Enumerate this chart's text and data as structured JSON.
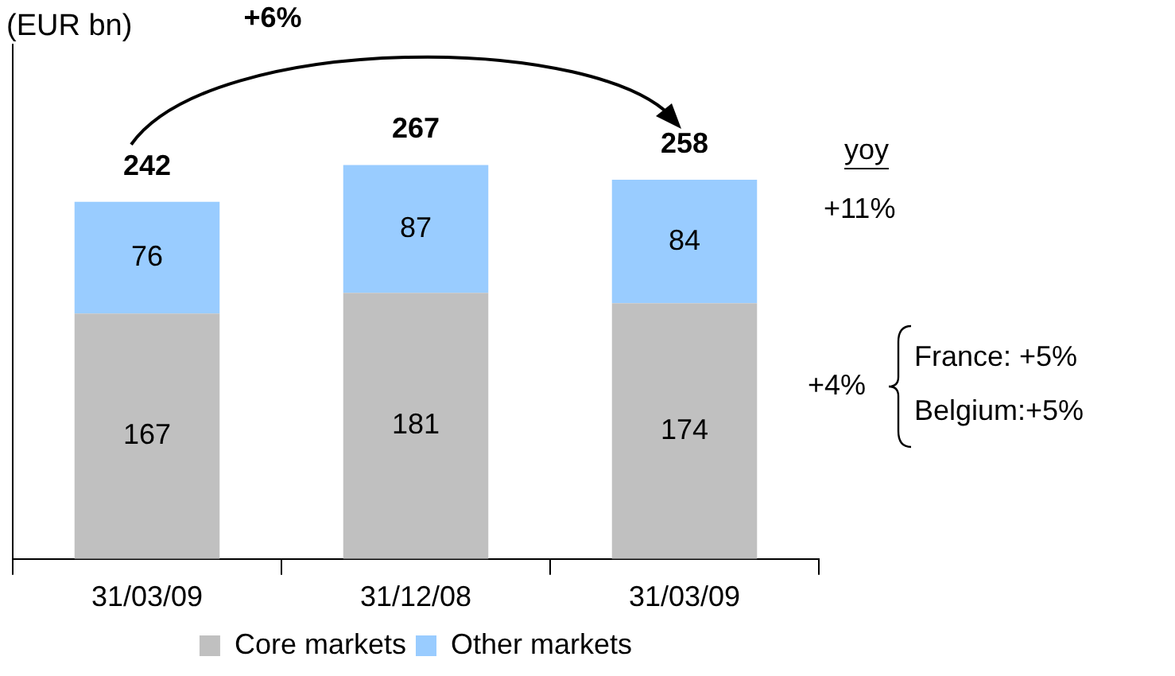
{
  "chart_data": {
    "type": "bar",
    "ylabel": "(EUR bn)",
    "categories": [
      "31/03/09",
      "31/12/08",
      "31/03/09"
    ],
    "series": [
      {
        "name": "Core markets",
        "color": "#c0c0c0",
        "values": [
          167,
          181,
          174
        ]
      },
      {
        "name": "Other markets",
        "color": "#99ccff",
        "values": [
          76,
          87,
          84
        ]
      }
    ],
    "stacked": true,
    "data_labels": true,
    "totals": [
      "242",
      "267",
      "258"
    ],
    "legend": "bottom",
    "grid": false,
    "annotations": [
      "+6%",
      "yoy",
      "+11%",
      "+4%",
      "France: +5%",
      "Belgium:+5%"
    ]
  }
}
